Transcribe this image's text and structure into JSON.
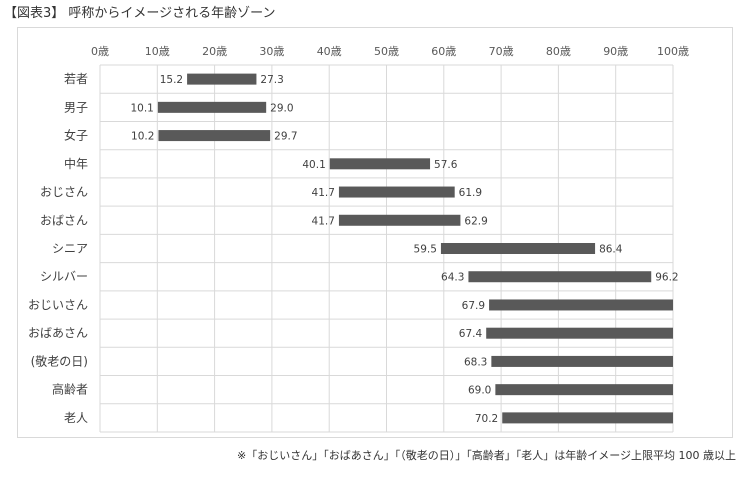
{
  "title": "【図表3】 呼称からイメージされる年齢ゾーン",
  "footnote": "※「おじいさん」「おばあさん」「（敬老の日）」「高齢者」「老人」は年齢イメージ上限平均 100 歳以上",
  "colors": {
    "bar": "#595959",
    "grid": "#d9d9d9",
    "text": "#404040"
  },
  "chart_data": {
    "type": "bar",
    "orientation": "horizontal",
    "subtype": "floating-range",
    "x_ticks": [
      "0歳",
      "10歳",
      "20歳",
      "30歳",
      "40歳",
      "50歳",
      "60歳",
      "70歳",
      "80歳",
      "90歳",
      "100歳"
    ],
    "xlim": [
      0,
      100
    ],
    "grid": true,
    "categories": [
      "若者",
      "男子",
      "女子",
      "中年",
      "おじさん",
      "おばさん",
      "シニア",
      "シルバー",
      "おじいさん",
      "おばあさん",
      "(敬老の日)",
      "高齢者",
      "老人"
    ],
    "series": [
      {
        "start": [
          15.2,
          10.1,
          10.2,
          40.1,
          41.7,
          41.7,
          59.5,
          64.3,
          67.9,
          67.4,
          68.3,
          69.0,
          70.2
        ],
        "end": [
          27.3,
          29.0,
          29.7,
          57.6,
          61.9,
          62.9,
          86.4,
          96.2,
          100,
          100,
          100,
          100,
          100
        ]
      }
    ],
    "start_labels": [
      "15.2",
      "10.1",
      "10.2",
      "40.1",
      "41.7",
      "41.7",
      "59.5",
      "64.3",
      "67.9",
      "67.4",
      "68.3",
      "69.0",
      "70.2"
    ],
    "end_labels": [
      "27.3",
      "29.0",
      "29.7",
      "57.6",
      "61.9",
      "62.9",
      "86.4",
      "96.2",
      "",
      "",
      "",
      "",
      ""
    ]
  }
}
